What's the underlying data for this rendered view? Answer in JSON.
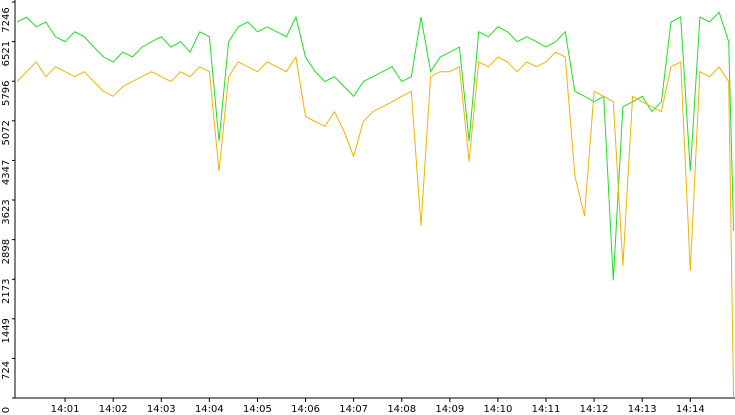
{
  "chart_data": {
    "type": "line",
    "x": [
      0,
      0.2,
      0.4,
      0.6,
      0.8,
      1,
      1.2,
      1.4,
      1.6,
      1.8,
      2,
      2.2,
      2.4,
      2.6,
      2.8,
      3,
      3.2,
      3.4,
      3.6,
      3.8,
      4,
      4.2,
      4.4,
      4.6,
      4.8,
      5,
      5.2,
      5.4,
      5.6,
      5.8,
      6,
      6.2,
      6.4,
      6.6,
      6.8,
      7,
      7.2,
      7.4,
      7.6,
      7.8,
      8,
      8.2,
      8.4,
      8.6,
      8.8,
      9,
      9.2,
      9.4,
      9.6,
      9.8,
      10,
      10.2,
      10.4,
      10.6,
      10.8,
      11,
      11.2,
      11.4,
      11.6,
      11.8,
      12,
      12.2,
      12.4,
      12.6,
      12.8,
      13,
      13.2,
      13.4,
      13.6,
      13.8,
      14,
      14.2,
      14.4,
      14.6,
      14.8,
      14.9
    ],
    "series": [
      {
        "color": "#22dd22",
        "values": [
          6880,
          6970,
          6790,
          6880,
          6610,
          6520,
          6700,
          6610,
          6420,
          6240,
          6150,
          6330,
          6240,
          6420,
          6520,
          6610,
          6420,
          6520,
          6330,
          6700,
          6610,
          4700,
          6520,
          6790,
          6880,
          6700,
          6790,
          6700,
          6610,
          6970,
          6240,
          5970,
          5790,
          5880,
          5700,
          5520,
          5790,
          5880,
          5970,
          6060,
          5790,
          5880,
          6970,
          5970,
          6240,
          6330,
          6420,
          4700,
          6700,
          6610,
          6790,
          6700,
          6520,
          6610,
          6520,
          6420,
          6520,
          6700,
          5610,
          5520,
          5420,
          5520,
          2150,
          5330,
          5420,
          5520,
          5240,
          5420,
          6880,
          6970,
          4150,
          6970,
          6880,
          7060,
          6520,
          3060
        ]
      },
      {
        "color": "#f0b400",
        "values": [
          5790,
          5970,
          6150,
          5880,
          6060,
          5970,
          5880,
          5970,
          5790,
          5610,
          5520,
          5700,
          5790,
          5880,
          5970,
          5880,
          5790,
          5970,
          5880,
          6060,
          5970,
          4150,
          5880,
          6150,
          6060,
          5970,
          6150,
          6060,
          5970,
          6240,
          5150,
          5060,
          4970,
          5240,
          4880,
          4420,
          5060,
          5240,
          5330,
          5420,
          5520,
          5610,
          3150,
          5880,
          5970,
          5970,
          6060,
          4330,
          6150,
          6060,
          6240,
          6150,
          5970,
          6150,
          6060,
          6150,
          6330,
          6240,
          4060,
          3330,
          5610,
          5520,
          5420,
          2420,
          5520,
          5420,
          5330,
          5240,
          6060,
          6150,
          2330,
          5970,
          5880,
          6060,
          5790,
          0
        ]
      }
    ],
    "xlim": [
      0,
      14.93
    ],
    "xticks": [
      {
        "value": 1,
        "label": "14:01"
      },
      {
        "value": 2,
        "label": "14:02"
      },
      {
        "value": 3,
        "label": "14:03"
      },
      {
        "value": 4,
        "label": "14:04"
      },
      {
        "value": 5,
        "label": "14:05"
      },
      {
        "value": 6,
        "label": "14:06"
      },
      {
        "value": 7,
        "label": "14:07"
      },
      {
        "value": 8,
        "label": "14:08"
      },
      {
        "value": 9,
        "label": "14:09"
      },
      {
        "value": 10,
        "label": "14:10"
      },
      {
        "value": 11,
        "label": "14:11"
      },
      {
        "value": 12,
        "label": "14:12"
      },
      {
        "value": 13,
        "label": "14:13"
      },
      {
        "value": 14,
        "label": "14:14"
      }
    ],
    "ylim": [
      0,
      7246
    ],
    "yticks": [
      0,
      724,
      1449,
      2173,
      2898,
      3623,
      4347,
      5072,
      5796,
      6521,
      7246
    ]
  }
}
